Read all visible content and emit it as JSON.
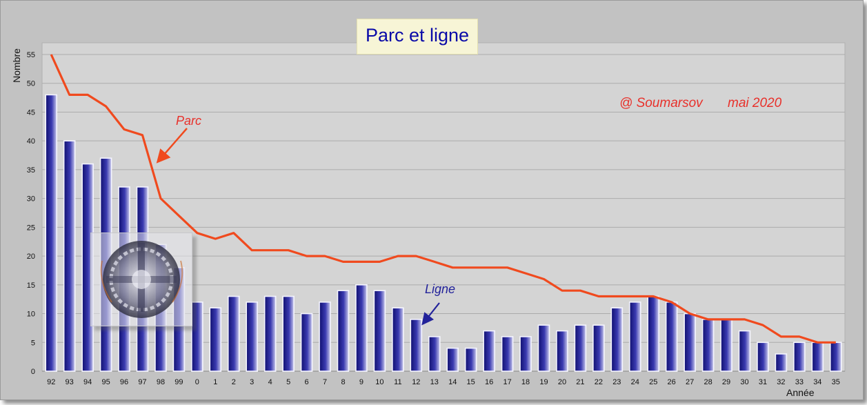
{
  "chart_data": {
    "type": "bar",
    "title": "Parc et ligne",
    "credit": "@ Soumarsov",
    "date": "mai 2020",
    "ylabel": "Nombre",
    "xlabel": "Année",
    "ylim": [
      0,
      55
    ],
    "yticks": [
      0,
      5,
      10,
      15,
      20,
      25,
      30,
      35,
      40,
      45,
      50,
      55
    ],
    "grid": true,
    "categories": [
      "92",
      "93",
      "94",
      "95",
      "96",
      "97",
      "98",
      "99",
      "0",
      "1",
      "2",
      "3",
      "4",
      "5",
      "6",
      "7",
      "8",
      "9",
      "10",
      "11",
      "12",
      "13",
      "14",
      "15",
      "16",
      "17",
      "18",
      "19",
      "20",
      "21",
      "22",
      "23",
      "24",
      "25",
      "26",
      "27",
      "28",
      "29",
      "30",
      "31",
      "32",
      "33",
      "34",
      "35"
    ],
    "series": [
      {
        "name": "Ligne",
        "type": "bar",
        "color": "#1e1e8c",
        "values": [
          48,
          40,
          36,
          37,
          32,
          32,
          22,
          18,
          12,
          11,
          13,
          12,
          13,
          13,
          10,
          12,
          14,
          15,
          14,
          11,
          9,
          6,
          4,
          4,
          7,
          6,
          6,
          8,
          7,
          8,
          8,
          11,
          12,
          13,
          12,
          10,
          9,
          9,
          7,
          5,
          3,
          5,
          5,
          5
        ]
      },
      {
        "name": "Parc",
        "type": "line",
        "color": "#f04a1e",
        "values": [
          55,
          48,
          48,
          46,
          42,
          41,
          30,
          27,
          24,
          23,
          24,
          21,
          21,
          21,
          20,
          20,
          19,
          19,
          19,
          20,
          20,
          19,
          18,
          18,
          18,
          18,
          17,
          16,
          14,
          14,
          13,
          13,
          13,
          13,
          12,
          10,
          9,
          9,
          9,
          8,
          6,
          6,
          5,
          5
        ]
      }
    ],
    "annotations": [
      {
        "text": "Parc",
        "series": "Parc",
        "color": "#e8302a"
      },
      {
        "text": "Ligne",
        "series": "Ligne",
        "color": "#22229a"
      }
    ]
  }
}
